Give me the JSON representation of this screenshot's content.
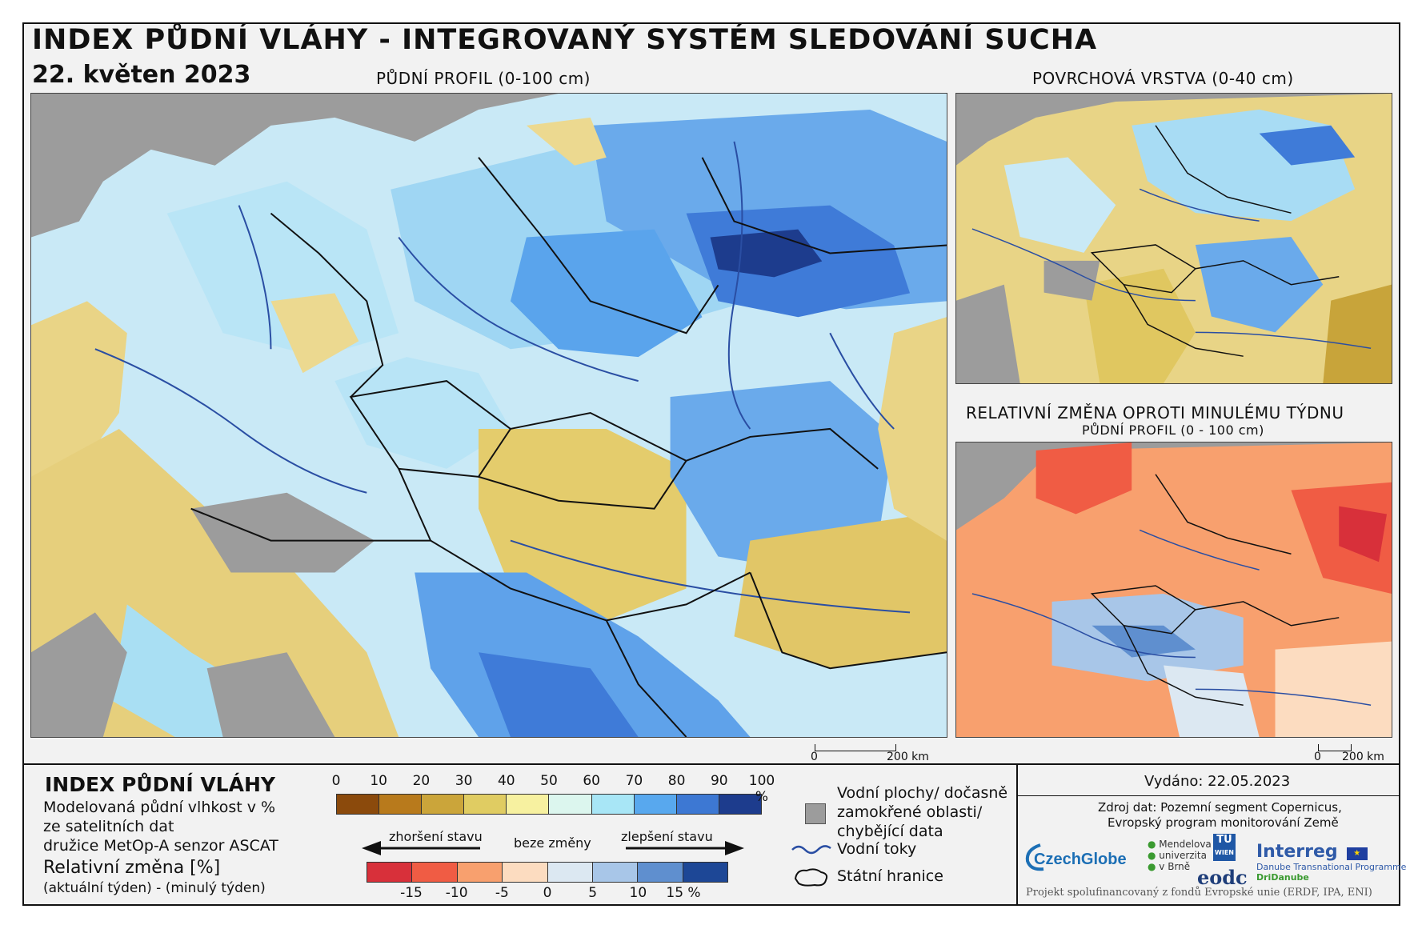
{
  "title": "INDEX PŮDNÍ VLÁHY - INTEGROVANÝ SYSTÉM SLEDOVÁNÍ SUCHA",
  "date": "22. květen 2023",
  "maps": {
    "main_label": "PŮDNÍ PROFIL (0-100 cm)",
    "surface_label": "POVRCHOVÁ VRSTVA (0-40 cm)",
    "change_label": "RELATIVNÍ ZMĚNA OPROTI MINULÉMU TÝDNU",
    "change_sublabel": "PŮDNÍ PROFIL (0 - 100 cm)",
    "scale_zero": "0",
    "scale_main": "200 km",
    "scale_small": "200 km"
  },
  "legend": {
    "title": "INDEX PŮDNÍ VLÁHY",
    "line1": "Modelovaná půdní vlhkost v %",
    "line2": "ze satelitních dat",
    "line3": "družice MetOp-A senzor ASCAT",
    "rel_title": "Relativní změna [%]",
    "rel_sub": "(aktuální týden) - (minulý týden)",
    "moisture_ticks": [
      "0",
      "10",
      "20",
      "30",
      "40",
      "50",
      "60",
      "70",
      "80",
      "90",
      "100 %"
    ],
    "moisture_colors": [
      "#8b4a0c",
      "#b87a1c",
      "#cba53a",
      "#e0cc62",
      "#f7f1a0",
      "#dcf6ee",
      "#a8e6f6",
      "#58a8ee",
      "#3d78d3",
      "#1d3c8d"
    ],
    "change_ticks": [
      "-15",
      "-10",
      "-5",
      "0",
      "5",
      "10",
      "15 %"
    ],
    "change_colors": [
      "#d8303a",
      "#f05c44",
      "#f8a06e",
      "#fcdcc0",
      "#dce8f2",
      "#a8c6e8",
      "#5f8fcf",
      "#1d4796"
    ],
    "worse": "zhoršení stavu",
    "nochange": "beze změny",
    "better": "zlepšení stavu"
  },
  "symbols": {
    "water1": "Vodní plochy/ dočasně",
    "water2": "zamokřené oblasti/",
    "water3": "chybějící data",
    "rivers": "Vodní toky",
    "borders": "Státní hranice"
  },
  "info": {
    "issued": "Vydáno: 22.05.2023",
    "source1": "Zdroj dat: Pozemní segment Copernicus,",
    "source2": "Evropský program monitorování Země",
    "funding": "Projekt spolufinancovaný z fondů Evropské unie (ERDF, IPA, ENI)",
    "logo_czechglobe": "CzechGlobe",
    "logo_mendel1": "Mendelova",
    "logo_mendel2": "univerzita",
    "logo_mendel3": "v Brně",
    "logo_tu": "TU",
    "logo_wien": "WIEN",
    "logo_eodc": "eodc",
    "logo_interreg": "Interreg",
    "logo_interreg_sub1": "Danube Transnational Programme",
    "logo_interreg_sub2": "DriDanube"
  }
}
